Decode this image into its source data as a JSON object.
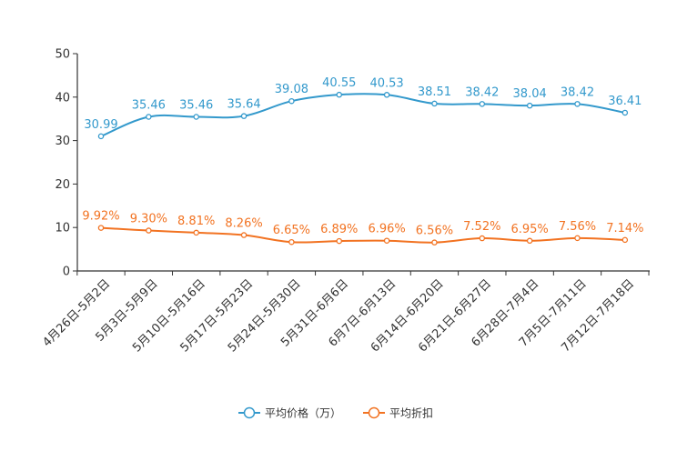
{
  "chart_data": {
    "type": "line",
    "title": "",
    "xlabel": "",
    "ylabel": "",
    "ylim": [
      0,
      50
    ],
    "yticks": [
      "0",
      "10",
      "20",
      "30",
      "40",
      "50"
    ],
    "categories": [
      "4月26日-5月2日",
      "5月3日-5月9日",
      "5月10日-5月16日",
      "5月17日-5月23日",
      "5月24日-5月30日",
      "5月31日-6月6日",
      "6月7日-6月13日",
      "6月14日-6月20日",
      "6月21日-6月27日",
      "6月28日-7月4日",
      "7月5日-7月11日",
      "7月12日-7月18日"
    ],
    "series": [
      {
        "name": "平均价格（万）",
        "color": "#3399cc",
        "values": [
          30.99,
          35.46,
          35.46,
          35.64,
          39.08,
          40.55,
          40.53,
          38.51,
          38.42,
          38.04,
          38.42,
          36.41
        ],
        "labels": [
          "30.99",
          "35.46",
          "35.46",
          "35.64",
          "39.08",
          "40.55",
          "40.53",
          "38.51",
          "38.42",
          "38.04",
          "38.42",
          "36.41"
        ]
      },
      {
        "name": "平均折扣",
        "color": "#f27322",
        "values": [
          9.92,
          9.3,
          8.81,
          8.26,
          6.65,
          6.89,
          6.96,
          6.56,
          7.52,
          6.95,
          7.56,
          7.14
        ],
        "labels": [
          "9.92%",
          "9.30%",
          "8.81%",
          "8.26%",
          "6.65%",
          "6.89%",
          "6.96%",
          "6.56%",
          "7.52%",
          "6.95%",
          "7.56%",
          "7.14%"
        ]
      }
    ],
    "legend_position": "bottom-center",
    "grid": false
  }
}
